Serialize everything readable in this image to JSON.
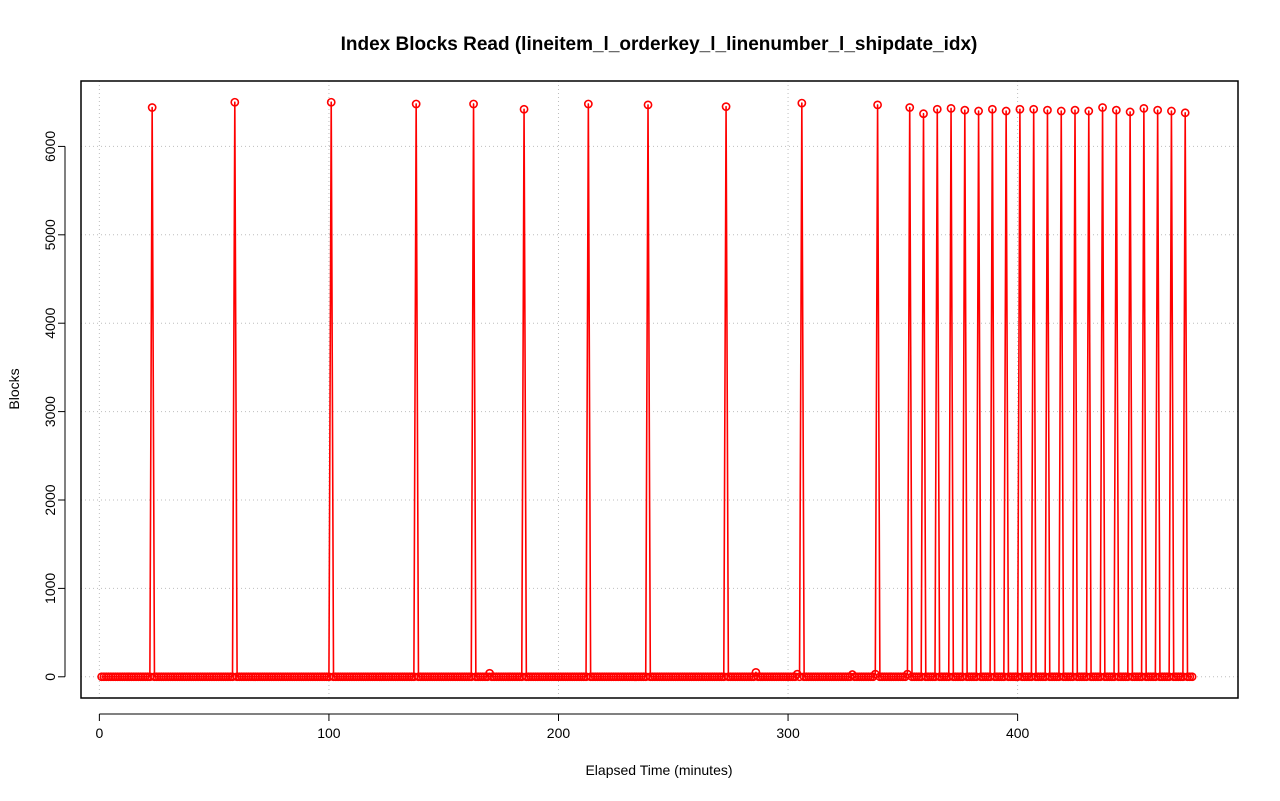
{
  "chart_data": {
    "type": "line",
    "title": "Index Blocks Read (lineitem_l_orderkey_l_linenumber_l_shipdate_idx)",
    "xlabel": "Elapsed Time (minutes)",
    "ylabel": "Blocks",
    "xlim": [
      -8,
      496
    ],
    "ylim": [
      -240,
      6740
    ],
    "xticks": [
      0,
      100,
      200,
      300,
      400
    ],
    "yticks": [
      0,
      1000,
      2000,
      3000,
      4000,
      5000,
      6000
    ],
    "grid": true,
    "legend": "none",
    "series_color": "#ff0000",
    "x_range": [
      1,
      476
    ],
    "x_step": 1,
    "baseline": 0,
    "spikes": [
      {
        "x": 23,
        "y": 6440
      },
      {
        "x": 59,
        "y": 6500
      },
      {
        "x": 101,
        "y": 6500
      },
      {
        "x": 138,
        "y": 6480
      },
      {
        "x": 163,
        "y": 6480
      },
      {
        "x": 185,
        "y": 6420
      },
      {
        "x": 213,
        "y": 6480
      },
      {
        "x": 239,
        "y": 6470
      },
      {
        "x": 273,
        "y": 6450
      },
      {
        "x": 306,
        "y": 6490
      },
      {
        "x": 339,
        "y": 6470
      },
      {
        "x": 353,
        "y": 6440
      },
      {
        "x": 359,
        "y": 6370
      },
      {
        "x": 365,
        "y": 6420
      },
      {
        "x": 371,
        "y": 6430
      },
      {
        "x": 377,
        "y": 6410
      },
      {
        "x": 383,
        "y": 6400
      },
      {
        "x": 389,
        "y": 6420
      },
      {
        "x": 395,
        "y": 6400
      },
      {
        "x": 401,
        "y": 6420
      },
      {
        "x": 407,
        "y": 6420
      },
      {
        "x": 413,
        "y": 6410
      },
      {
        "x": 419,
        "y": 6400
      },
      {
        "x": 425,
        "y": 6410
      },
      {
        "x": 431,
        "y": 6400
      },
      {
        "x": 437,
        "y": 6440
      },
      {
        "x": 443,
        "y": 6410
      },
      {
        "x": 449,
        "y": 6390
      },
      {
        "x": 455,
        "y": 6430
      },
      {
        "x": 461,
        "y": 6410
      },
      {
        "x": 467,
        "y": 6400
      },
      {
        "x": 473,
        "y": 6380
      }
    ],
    "small_points": [
      {
        "x": 170,
        "y": 40
      },
      {
        "x": 286,
        "y": 50
      },
      {
        "x": 304,
        "y": 30
      },
      {
        "x": 328,
        "y": 25
      },
      {
        "x": 338,
        "y": 30
      },
      {
        "x": 352,
        "y": 30
      }
    ]
  }
}
